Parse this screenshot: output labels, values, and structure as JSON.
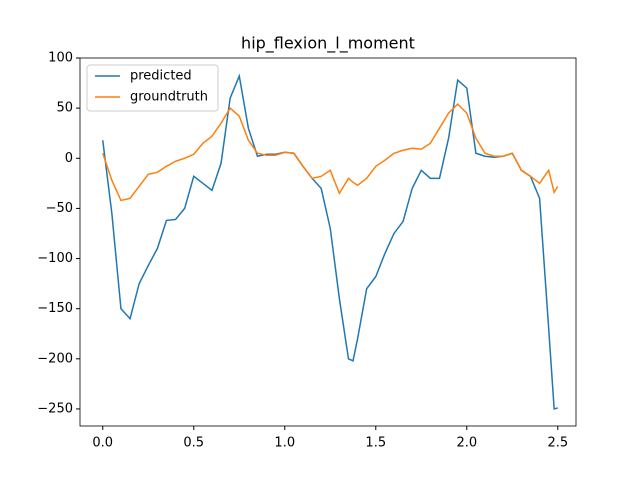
{
  "chart_data": {
    "type": "line",
    "title": "hip_flexion_l_moment",
    "x": [
      0,
      0.05,
      0.1,
      0.15,
      0.2,
      0.25,
      0.3,
      0.35,
      0.4,
      0.45,
      0.5,
      0.55,
      0.6,
      0.65,
      0.7,
      0.75,
      0.8,
      0.85,
      0.9,
      0.95,
      1,
      1.05,
      1.1,
      1.15,
      1.2,
      1.25,
      1.3,
      1.35,
      1.375,
      1.4,
      1.45,
      1.5,
      1.55,
      1.6,
      1.65,
      1.7,
      1.75,
      1.8,
      1.85,
      1.9,
      1.95,
      2,
      2.05,
      2.1,
      2.15,
      2.2,
      2.25,
      2.3,
      2.35,
      2.4,
      2.45,
      2.48,
      2.5
    ],
    "series": [
      {
        "name": "predicted",
        "color": "#1f77b4",
        "values": [
          18,
          -55,
          -150,
          -160,
          -125,
          -107,
          -90,
          -62,
          -61,
          -50,
          -18,
          -25,
          -32,
          -5,
          60,
          82,
          30,
          2,
          4,
          4,
          6,
          5,
          -8,
          -20,
          -30,
          -70,
          -140,
          -200,
          -202,
          -180,
          -130,
          -118,
          -95,
          -75,
          -63,
          -30,
          -12,
          -20,
          -20,
          20,
          78,
          70,
          5,
          2,
          1,
          2,
          5,
          -12,
          -18,
          -40,
          -170,
          -250,
          -249
        ]
      },
      {
        "name": "groundtruth",
        "color": "#ff7f0e",
        "values": [
          5,
          -22,
          -42,
          -40,
          -28,
          -16,
          -14,
          -8,
          -3,
          0,
          4,
          15,
          22,
          35,
          50,
          42,
          18,
          5,
          3,
          3,
          6,
          5,
          -8,
          -20,
          -18,
          -12,
          -35,
          -20,
          -24,
          -27,
          -20,
          -8,
          -2,
          5,
          8,
          10,
          9,
          15,
          30,
          45,
          54,
          45,
          20,
          5,
          2,
          2,
          5,
          -12,
          -18,
          -25,
          -12,
          -34,
          -28
        ]
      }
    ],
    "xlim": [
      -0.125,
      2.6
    ],
    "ylim": [
      -267,
      100
    ],
    "xticks": [
      {
        "value": 0,
        "label": "0.0"
      },
      0.5,
      {
        "value": 1,
        "label": "1.0"
      },
      1.5,
      {
        "value": 2,
        "label": "2.0"
      },
      2.5
    ],
    "yticks": [
      {
        "value": -250,
        "label": "−250"
      },
      {
        "value": -200,
        "label": "−200"
      },
      {
        "value": -150,
        "label": "−150"
      },
      {
        "value": -100,
        "label": "−100"
      },
      {
        "value": -50,
        "label": "−50"
      },
      0,
      50,
      100
    ],
    "legend": "upper left",
    "grid": false
  }
}
